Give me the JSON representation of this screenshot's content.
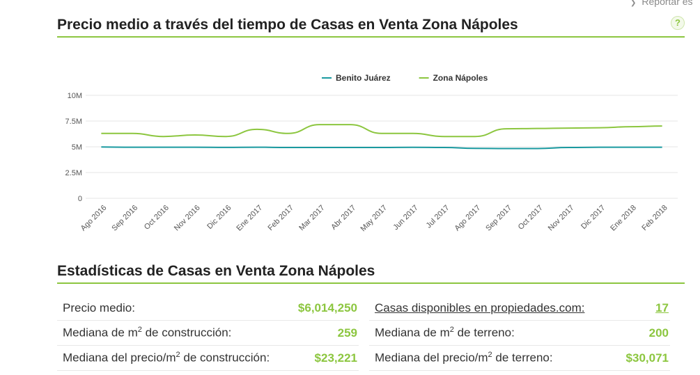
{
  "header": {
    "report_label": "Reportar es",
    "help_label": "?"
  },
  "chart_title": "Precio medio a través del tiempo de Casas en Venta Zona Nápoles",
  "chart_data": {
    "type": "line",
    "title": "Precio medio a través del tiempo de Casas en Venta Zona Nápoles",
    "xlabel": "",
    "ylabel": "",
    "ylim": [
      0,
      10000000
    ],
    "yticks": [
      0,
      2500000,
      5000000,
      7500000,
      10000000
    ],
    "ytick_labels": [
      "0",
      "2.5M",
      "5M",
      "7.5M",
      "10M"
    ],
    "grid": true,
    "legend_position": "top-center",
    "x": [
      "Ago 2016",
      "Sep 2016",
      "Oct 2016",
      "Nov 2016",
      "Dic 2016",
      "Ene 2017",
      "Feb 2017",
      "Mar 2017",
      "Abr 2017",
      "May 2017",
      "Jun 2017",
      "Jul 2017",
      "Ago 2017",
      "Sep 2017",
      "Oct 2017",
      "Nov 2017",
      "Dic 2017",
      "Ene 2018",
      "Feb 2018"
    ],
    "series": [
      {
        "name": "Benito Juárez",
        "color": "#1a9aa0",
        "values": [
          4980000,
          4960000,
          4960000,
          4960000,
          4940000,
          4960000,
          4930000,
          4930000,
          4930000,
          4930000,
          4950000,
          4930000,
          4850000,
          4830000,
          4830000,
          4930000,
          4960000,
          4960000,
          4960000
        ]
      },
      {
        "name": "Zona Nápoles",
        "color": "#8cc63f",
        "values": [
          6300000,
          6300000,
          6000000,
          6150000,
          6000000,
          6700000,
          6300000,
          7150000,
          7150000,
          6300000,
          6300000,
          6000000,
          6000000,
          6750000,
          6780000,
          6820000,
          6850000,
          6950000,
          7020000
        ]
      }
    ]
  },
  "stats_title": "Estadísticas de Casas en Venta Zona Nápoles",
  "stats": {
    "left": [
      {
        "label": "Precio medio:",
        "value": "$6,014,250"
      },
      {
        "label_pre": "Mediana de m",
        "sup": "2",
        "label_post": " de construcción:",
        "value": "259"
      },
      {
        "label_pre": "Mediana del precio/m",
        "sup": "2",
        "label_post": " de construcción:",
        "value": "$23,221"
      }
    ],
    "right": [
      {
        "label": "Casas disponibles en propiedades.com:",
        "value": "17"
      },
      {
        "label_pre": "Mediana de m",
        "sup": "2",
        "label_post": " de terreno:",
        "value": "200"
      },
      {
        "label_pre": "Mediana del precio/m",
        "sup": "2",
        "label_post": " de terreno:",
        "value": "$30,071"
      }
    ]
  }
}
